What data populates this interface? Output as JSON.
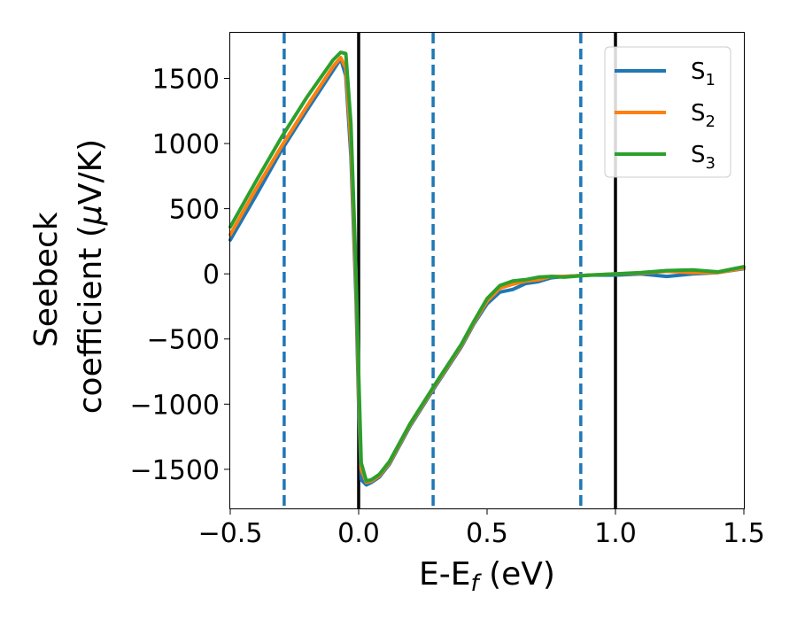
{
  "chart_data": {
    "type": "line",
    "xlabel": {
      "main": "E-E",
      "sub": "f",
      "unit": " (eV)"
    },
    "ylabel": {
      "line1": "Seebeck",
      "line2_prefix": "coefficient  (",
      "mu": "μ",
      "line2_suffix": "V/K)"
    },
    "xlim": [
      -0.5,
      1.5
    ],
    "ylim": [
      -1800,
      1850
    ],
    "xticks": [
      -0.5,
      0.0,
      0.5,
      1.0,
      1.5
    ],
    "xtick_labels": [
      "−0.5",
      "0.0",
      "0.5",
      "1.0",
      "1.5"
    ],
    "yticks": [
      -1500,
      -1000,
      -500,
      0,
      500,
      1000,
      1500
    ],
    "ytick_labels": [
      "−1500",
      "−1000",
      "−500",
      "0",
      "500",
      "1000",
      "1500"
    ],
    "grid": false,
    "legend_position": "top-right",
    "vertical_lines": [
      {
        "x": -0.29,
        "style": "dashed",
        "color": "#1f77b4"
      },
      {
        "x": 0.0,
        "style": "solid",
        "color": "#000000"
      },
      {
        "x": 0.29,
        "style": "dashed",
        "color": "#1f77b4"
      },
      {
        "x": 0.865,
        "style": "dashed",
        "color": "#1f77b4"
      },
      {
        "x": 1.0,
        "style": "solid",
        "color": "#000000"
      }
    ],
    "series": [
      {
        "name": "S",
        "subscript": "1",
        "color": "#1f77b4",
        "x": [
          -0.5,
          -0.4,
          -0.3,
          -0.2,
          -0.1,
          -0.07,
          -0.05,
          -0.03,
          -0.01,
          0.0,
          0.01,
          0.03,
          0.05,
          0.08,
          0.12,
          0.2,
          0.3,
          0.4,
          0.45,
          0.5,
          0.55,
          0.6,
          0.65,
          0.7,
          0.75,
          0.8,
          0.9,
          1.0,
          1.1,
          1.2,
          1.3,
          1.4,
          1.5
        ],
        "y": [
          260,
          600,
          950,
          1260,
          1560,
          1650,
          1520,
          900,
          -200,
          -1000,
          -1580,
          -1620,
          -1600,
          -1560,
          -1460,
          -1170,
          -860,
          -560,
          -380,
          -230,
          -140,
          -120,
          -75,
          -60,
          -30,
          -20,
          -10,
          -10,
          0,
          -20,
          0,
          10,
          40
        ]
      },
      {
        "name": "S",
        "subscript": "2",
        "color": "#ff7f0e",
        "x": [
          -0.5,
          -0.4,
          -0.3,
          -0.2,
          -0.1,
          -0.07,
          -0.05,
          -0.03,
          -0.01,
          0.0,
          0.01,
          0.03,
          0.05,
          0.08,
          0.12,
          0.2,
          0.3,
          0.4,
          0.45,
          0.5,
          0.55,
          0.6,
          0.65,
          0.7,
          0.75,
          0.8,
          0.9,
          1.0,
          1.1,
          1.2,
          1.3,
          1.4,
          1.5
        ],
        "y": [
          300,
          650,
          980,
          1290,
          1590,
          1660,
          1580,
          1000,
          -100,
          -880,
          -1500,
          -1600,
          -1590,
          -1550,
          -1450,
          -1160,
          -850,
          -550,
          -370,
          -210,
          -110,
          -80,
          -55,
          -45,
          -20,
          -20,
          -10,
          0,
          5,
          20,
          10,
          10,
          45
        ]
      },
      {
        "name": "S",
        "subscript": "3",
        "color": "#2ca02c",
        "x": [
          -0.5,
          -0.4,
          -0.3,
          -0.2,
          -0.1,
          -0.07,
          -0.05,
          -0.03,
          -0.01,
          0.0,
          0.01,
          0.03,
          0.05,
          0.08,
          0.12,
          0.2,
          0.3,
          0.4,
          0.45,
          0.5,
          0.55,
          0.6,
          0.65,
          0.7,
          0.75,
          0.8,
          0.9,
          1.0,
          1.1,
          1.2,
          1.3,
          1.4,
          1.5
        ],
        "y": [
          360,
          710,
          1050,
          1360,
          1640,
          1700,
          1690,
          1150,
          0,
          -760,
          -1450,
          -1590,
          -1580,
          -1540,
          -1440,
          -1150,
          -840,
          -540,
          -360,
          -190,
          -90,
          -55,
          -45,
          -25,
          -20,
          -25,
          -10,
          0,
          10,
          25,
          30,
          15,
          55
        ]
      }
    ]
  }
}
